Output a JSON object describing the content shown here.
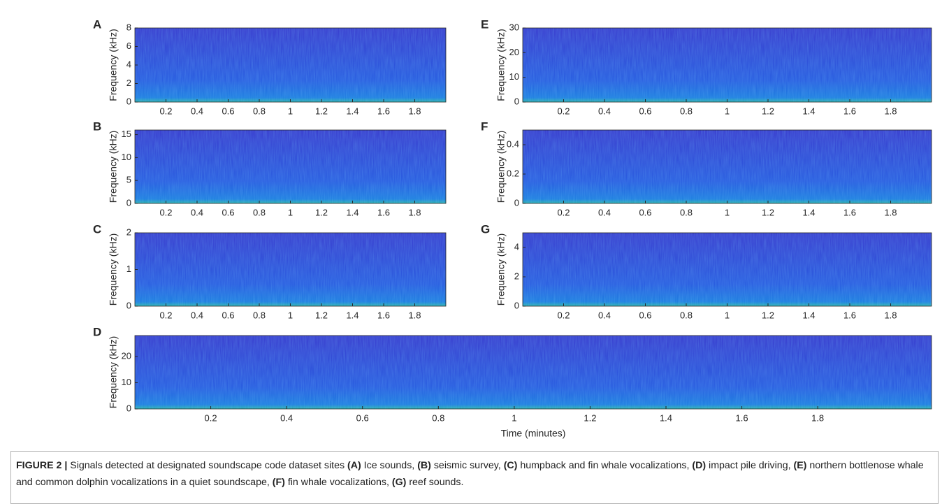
{
  "chart_data": [
    {
      "type": "spectrogram",
      "panel": "A",
      "ylabel": "Frequency (kHz)",
      "xlim": [
        0,
        2
      ],
      "xticks": [
        0.2,
        0.4,
        0.6,
        0.8,
        1,
        1.2,
        1.4,
        1.6,
        1.8
      ],
      "ylim": [
        0,
        8
      ],
      "yticks": [
        0,
        2,
        4,
        6,
        8
      ]
    },
    {
      "type": "spectrogram",
      "panel": "B",
      "ylabel": "Frequency (kHz)",
      "xlim": [
        0,
        2
      ],
      "xticks": [
        0.2,
        0.4,
        0.6,
        0.8,
        1,
        1.2,
        1.4,
        1.6,
        1.8
      ],
      "ylim": [
        0,
        16
      ],
      "yticks": [
        0,
        5,
        10,
        15
      ]
    },
    {
      "type": "spectrogram",
      "panel": "C",
      "ylabel": "Frequency (kHz)",
      "xlim": [
        0,
        2
      ],
      "xticks": [
        0.2,
        0.4,
        0.6,
        0.8,
        1,
        1.2,
        1.4,
        1.6,
        1.8
      ],
      "ylim": [
        0,
        2
      ],
      "yticks": [
        0,
        1,
        2
      ]
    },
    {
      "type": "spectrogram",
      "panel": "D",
      "ylabel": "Frequency (kHz)",
      "xlabel": "Time (minutes)",
      "xlim": [
        0,
        2.1
      ],
      "xticks": [
        0.2,
        0.4,
        0.6,
        0.8,
        1,
        1.2,
        1.4,
        1.6,
        1.8
      ],
      "ylim": [
        0,
        28
      ],
      "yticks": [
        0,
        10,
        20
      ]
    },
    {
      "type": "spectrogram",
      "panel": "E",
      "ylabel": "Frequency (kHz)",
      "xlim": [
        0,
        2
      ],
      "xticks": [
        0.2,
        0.4,
        0.6,
        0.8,
        1,
        1.2,
        1.4,
        1.6,
        1.8
      ],
      "ylim": [
        0,
        30
      ],
      "yticks": [
        0,
        10,
        20,
        30
      ]
    },
    {
      "type": "spectrogram",
      "panel": "F",
      "ylabel": "Frequency (kHz)",
      "xlim": [
        0,
        2
      ],
      "xticks": [
        0.2,
        0.4,
        0.6,
        0.8,
        1,
        1.2,
        1.4,
        1.6,
        1.8
      ],
      "ylim": [
        0,
        0.5
      ],
      "yticks": [
        0,
        0.2,
        0.4
      ]
    },
    {
      "type": "spectrogram",
      "panel": "G",
      "ylabel": "Frequency (kHz)",
      "xlim": [
        0,
        2
      ],
      "xticks": [
        0.2,
        0.4,
        0.6,
        0.8,
        1,
        1.2,
        1.4,
        1.6,
        1.8
      ],
      "ylim": [
        0,
        5
      ],
      "yticks": [
        0,
        2,
        4
      ]
    }
  ],
  "caption": {
    "label": "FIGURE 2 |",
    "segments": [
      {
        "text": " Signals detected at designated soundscape code dataset sites ",
        "bold": false
      },
      {
        "text": "(A)",
        "bold": true
      },
      {
        "text": " Ice sounds, ",
        "bold": false
      },
      {
        "text": "(B)",
        "bold": true
      },
      {
        "text": " seismic survey, ",
        "bold": false
      },
      {
        "text": "(C)",
        "bold": true
      },
      {
        "text": " humpback and fin whale vocalizations, ",
        "bold": false
      },
      {
        "text": "(D)",
        "bold": true
      },
      {
        "text": " impact pile driving, ",
        "bold": false
      },
      {
        "text": "(E)",
        "bold": true
      },
      {
        "text": " northern bottlenose whale and common dolphin vocalizations in a quiet soundscape, ",
        "bold": false
      },
      {
        "text": "(F)",
        "bold": true
      },
      {
        "text": " fin whale vocalizations, ",
        "bold": false
      },
      {
        "text": "(G)",
        "bold": true
      },
      {
        "text": " reef sounds.",
        "bold": false
      }
    ]
  }
}
